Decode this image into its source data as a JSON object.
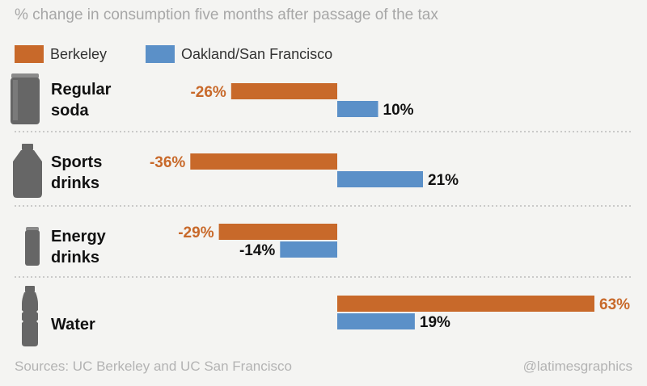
{
  "chart_data": {
    "type": "bar",
    "title": "% change in consumption five months after passage of the tax",
    "categories": [
      {
        "id": "regular-soda",
        "lines": [
          "Regular",
          "soda"
        ],
        "icon": "soda-can-icon"
      },
      {
        "id": "sports-drinks",
        "lines": [
          "Sports",
          "drinks"
        ],
        "icon": "sports-bottle-icon"
      },
      {
        "id": "energy-drinks",
        "lines": [
          "Energy",
          "drinks"
        ],
        "icon": "energy-can-icon"
      },
      {
        "id": "water",
        "lines": [
          "Water"
        ],
        "icon": "water-bottle-icon"
      }
    ],
    "series": [
      {
        "name": "Berkeley",
        "color": "#c8692a",
        "values": [
          -26,
          -36,
          -29,
          63
        ],
        "labels": [
          "-26%",
          "-36%",
          "-29%",
          "63%"
        ]
      },
      {
        "name": "Oakland/San Francisco",
        "color": "#5b90c8",
        "values": [
          10,
          21,
          -14,
          19
        ],
        "labels": [
          "10%",
          "21%",
          "-14%",
          "19%"
        ]
      }
    ],
    "xlim": [
      -36,
      63
    ],
    "source": "Sources: UC Berkeley and UC San Francisco",
    "credit": "@latimesgraphics"
  }
}
